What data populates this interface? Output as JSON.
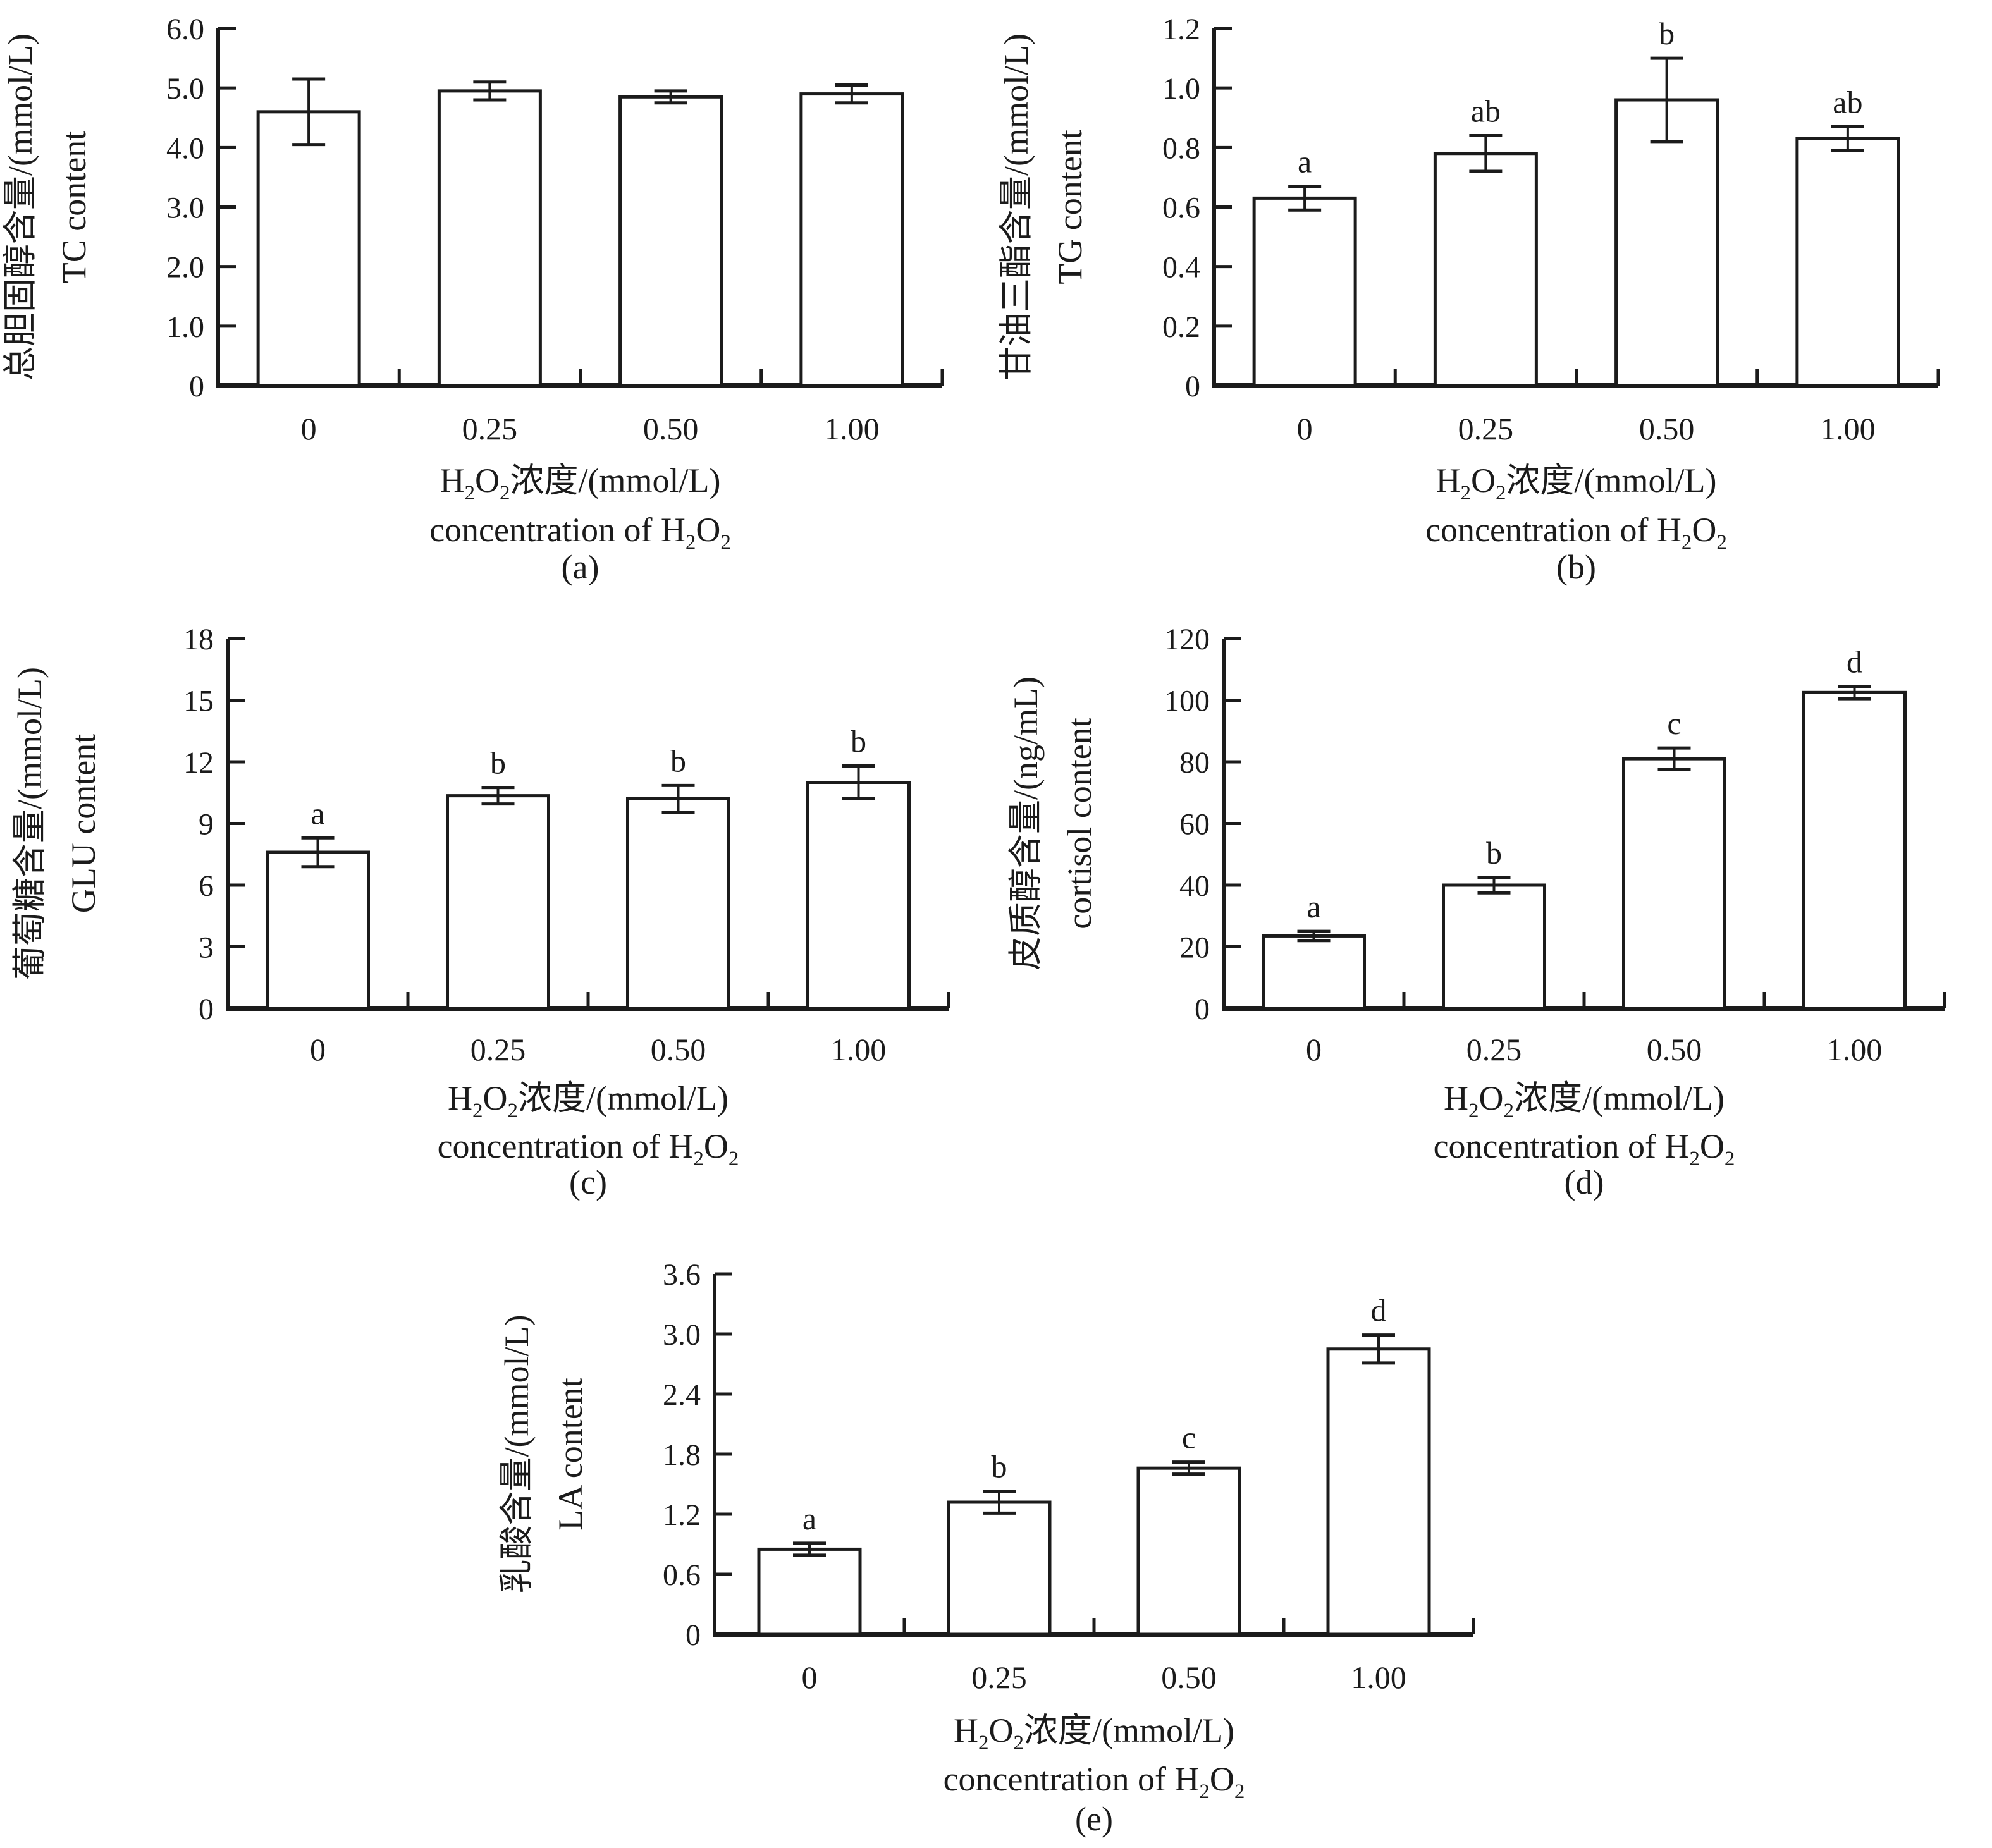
{
  "figure": {
    "x_categories": [
      "0",
      "0.25",
      "0.50",
      "1.00"
    ],
    "x_title_cn": "H2O2浓度/(mmol/L)",
    "x_title_en": "concentration of H2O2",
    "x_title_cn_parts": [
      {
        "t": "H"
      },
      {
        "t": "2",
        "sub": true
      },
      {
        "t": "O"
      },
      {
        "t": "2",
        "sub": true
      },
      {
        "t": "浓度/(mmol/L)"
      }
    ],
    "x_title_en_parts": [
      {
        "t": "concentration of H"
      },
      {
        "t": "2",
        "sub": true
      },
      {
        "t": "O"
      },
      {
        "t": "2",
        "sub": true
      }
    ],
    "ink_color": "#1b1b1b",
    "background_color": "#ffffff"
  },
  "chart_data": [
    {
      "type": "bar",
      "panel": "(a)",
      "y_label_cn": "总胆固醇含量/(mmol/L)",
      "y_label_en": "TC content",
      "categories": [
        "0",
        "0.25",
        "0.50",
        "1.00"
      ],
      "values": [
        4.6,
        4.95,
        4.85,
        4.9
      ],
      "errors": [
        0.55,
        0.15,
        0.1,
        0.15
      ],
      "sig_letters": [
        "",
        "",
        "",
        ""
      ],
      "ylim": [
        0,
        6
      ],
      "ytick_labels": [
        "0",
        "1.0",
        "2.0",
        "3.0",
        "4.0",
        "5.0",
        "6.0"
      ],
      "grid": false,
      "legend": "none"
    },
    {
      "type": "bar",
      "panel": "(b)",
      "y_label_cn": "甘油三酯含量/(mmol/L)",
      "y_label_en": "TG content",
      "categories": [
        "0",
        "0.25",
        "0.50",
        "1.00"
      ],
      "values": [
        0.63,
        0.78,
        0.96,
        0.83
      ],
      "errors": [
        0.04,
        0.06,
        0.14,
        0.04
      ],
      "sig_letters": [
        "a",
        "ab",
        "b",
        "ab"
      ],
      "ylim": [
        0,
        1.2
      ],
      "ytick_labels": [
        "0",
        "0.2",
        "0.4",
        "0.6",
        "0.8",
        "1.0",
        "1.2"
      ],
      "grid": false,
      "legend": "none"
    },
    {
      "type": "bar",
      "panel": "(c)",
      "y_label_cn": "葡萄糖含量/(mmol/L)",
      "y_label_en": "GLU content",
      "categories": [
        "0",
        "0.25",
        "0.50",
        "1.00"
      ],
      "values": [
        7.6,
        10.35,
        10.2,
        11.0
      ],
      "errors": [
        0.7,
        0.4,
        0.65,
        0.8
      ],
      "sig_letters": [
        "a",
        "b",
        "b",
        "b"
      ],
      "ylim": [
        0,
        18
      ],
      "ytick_labels": [
        "0",
        "3",
        "6",
        "9",
        "12",
        "15",
        "18"
      ],
      "grid": false,
      "legend": "none"
    },
    {
      "type": "bar",
      "panel": "(d)",
      "y_label_cn": "皮质醇含量/(ng/mL)",
      "y_label_en": "cortisol content",
      "categories": [
        "0",
        "0.25",
        "0.50",
        "1.00"
      ],
      "values": [
        23.5,
        40,
        81,
        102.5
      ],
      "errors": [
        1.5,
        2.5,
        3.5,
        2
      ],
      "sig_letters": [
        "a",
        "b",
        "c",
        "d"
      ],
      "ylim": [
        0,
        120
      ],
      "ytick_labels": [
        "0",
        "20",
        "40",
        "60",
        "80",
        "100",
        "120"
      ],
      "grid": false,
      "legend": "none"
    },
    {
      "type": "bar",
      "panel": "(e)",
      "y_label_cn": "乳酸含量/(mmol/L)",
      "y_label_en": "LA content",
      "categories": [
        "0",
        "0.25",
        "0.50",
        "1.00"
      ],
      "values": [
        0.85,
        1.32,
        1.66,
        2.85
      ],
      "errors": [
        0.06,
        0.11,
        0.06,
        0.14
      ],
      "sig_letters": [
        "a",
        "b",
        "c",
        "d"
      ],
      "ylim": [
        0,
        3.6
      ],
      "ytick_labels": [
        "0",
        "0.6",
        "1.2",
        "1.8",
        "2.4",
        "3.0",
        "3.6"
      ],
      "grid": false,
      "legend": "none"
    }
  ]
}
